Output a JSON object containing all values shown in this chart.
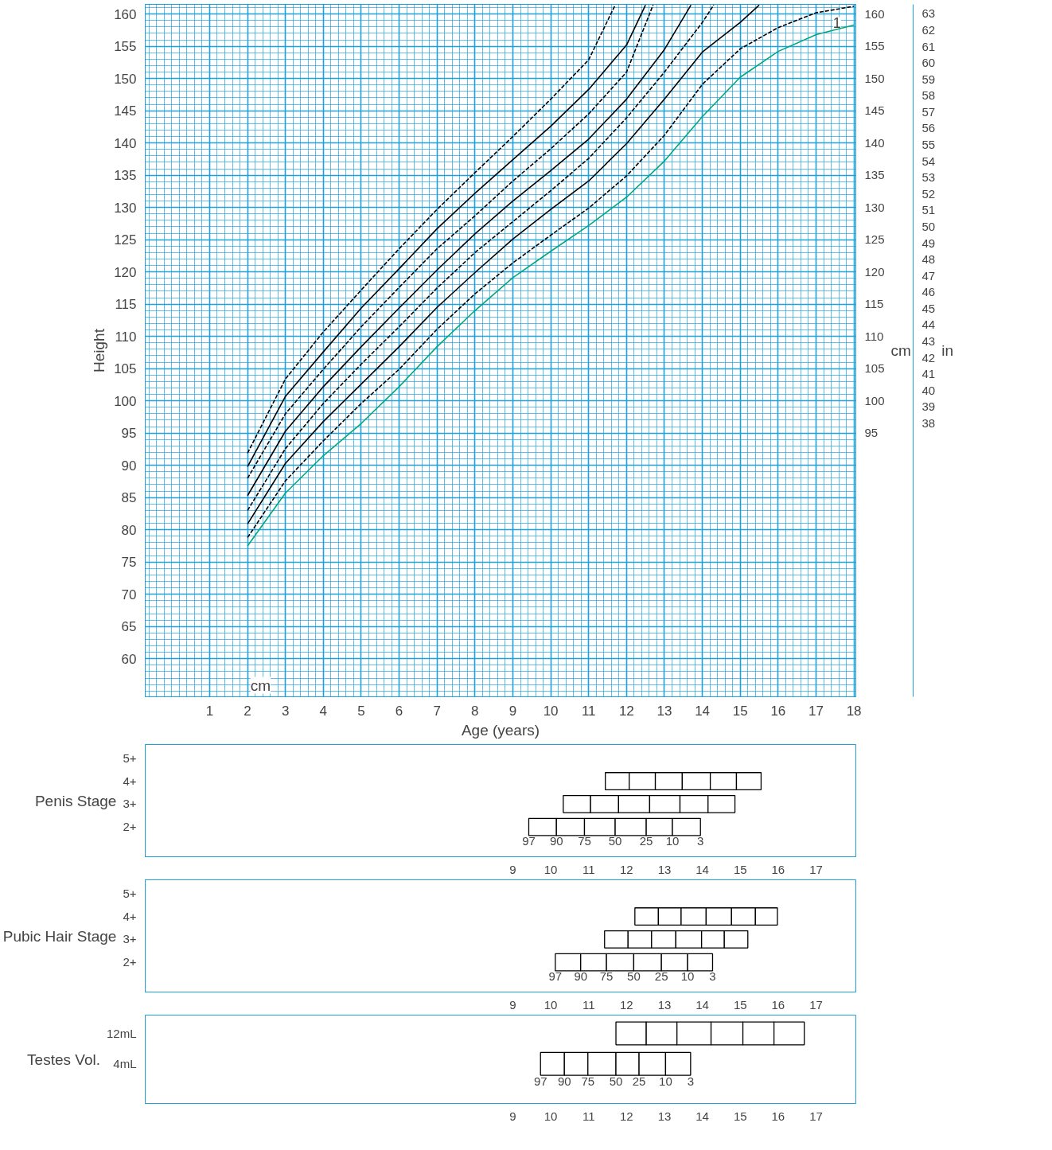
{
  "chart_data": [
    {
      "type": "line",
      "xlabel": "Age (years)",
      "ylabel": "Height",
      "y2label": "cm",
      "y3label": "in",
      "annotations": [
        "cm",
        "1"
      ],
      "xlim": [
        -0.7,
        18.05
      ],
      "xticks": [
        1,
        2,
        3,
        4,
        5,
        6,
        7,
        8,
        9,
        10,
        11,
        12,
        13,
        14,
        15,
        16,
        17,
        18
      ],
      "ylim": [
        54.1,
        161.5
      ],
      "yticks": [
        60,
        65,
        70,
        75,
        80,
        85,
        90,
        95,
        100,
        105,
        110,
        115,
        120,
        125,
        130,
        135,
        140,
        145,
        150,
        155,
        160
      ],
      "y2lim": [
        54.1,
        161.5
      ],
      "y2ticks": [
        95,
        100,
        105,
        110,
        115,
        120,
        125,
        130,
        135,
        140,
        145,
        150,
        155,
        160
      ],
      "y3lim": [
        21.3,
        63.58
      ],
      "y3ticks": [
        38,
        39,
        40,
        41,
        42,
        43,
        44,
        45,
        46,
        47,
        48,
        49,
        50,
        51,
        52,
        53,
        54,
        55,
        56,
        57,
        58,
        59,
        60,
        61,
        62,
        63
      ],
      "grid": true,
      "series": [
        {
          "color": "#000000",
          "line_style": "dashed",
          "x": [
            2,
            3,
            4,
            5,
            6,
            7,
            8,
            9,
            10,
            11,
            11.7
          ],
          "values": [
            91.9,
            103.4,
            110.7,
            117.2,
            123.6,
            129.7,
            135.4,
            141.0,
            146.8,
            152.9,
            161.4
          ]
        },
        {
          "color": "#000000",
          "line_style": "solid",
          "x": [
            2,
            3,
            4,
            5,
            6,
            7,
            8,
            9,
            10,
            11,
            12,
            12.5
          ],
          "values": [
            89.8,
            100.7,
            107.6,
            114.4,
            120.5,
            126.7,
            132.2,
            137.4,
            142.6,
            148.3,
            155.2,
            161.4
          ]
        },
        {
          "color": "#000000",
          "line_style": "dashed",
          "x": [
            2,
            3,
            4,
            5,
            6,
            7,
            8,
            9,
            10,
            11,
            12,
            12.7
          ],
          "values": [
            88.0,
            98.0,
            104.9,
            111.5,
            117.6,
            123.6,
            128.7,
            134.1,
            139.1,
            144.5,
            151.0,
            161.4
          ]
        },
        {
          "color": "#000000",
          "line_style": "solid",
          "x": [
            2,
            3,
            4,
            5,
            6,
            7,
            8,
            9,
            10,
            11,
            12,
            13,
            13.7
          ],
          "values": [
            85.3,
            95.3,
            102.2,
            108.4,
            114.4,
            120.3,
            125.9,
            131.0,
            135.7,
            140.6,
            146.8,
            154.5,
            161.4
          ]
        },
        {
          "color": "#000000",
          "line_style": "dashed",
          "x": [
            2,
            3,
            4,
            5,
            6,
            7,
            8,
            9,
            10,
            11,
            12,
            13,
            14,
            14.3
          ],
          "values": [
            83.0,
            92.6,
            99.6,
            105.7,
            111.5,
            117.5,
            123.0,
            127.8,
            132.6,
            137.6,
            143.9,
            151.0,
            158.7,
            161.4
          ]
        },
        {
          "color": "#000000",
          "line_style": "solid",
          "x": [
            2,
            3,
            4,
            5,
            6,
            7,
            8,
            9,
            10,
            11,
            12,
            13,
            14,
            15,
            15.5
          ],
          "values": [
            80.9,
            90.3,
            96.8,
            102.6,
            108.4,
            114.5,
            119.9,
            125.1,
            129.7,
            134.1,
            139.9,
            146.8,
            154.1,
            158.7,
            161.4
          ]
        },
        {
          "color": "#000000",
          "line_style": "dashed",
          "x": [
            2,
            3,
            4,
            5,
            6,
            7,
            8,
            9,
            10,
            11,
            12,
            13,
            14,
            15,
            16,
            17,
            18
          ],
          "values": [
            78.8,
            87.6,
            93.8,
            99.6,
            104.9,
            111.1,
            116.6,
            121.4,
            125.7,
            129.9,
            134.9,
            141.2,
            149.1,
            154.6,
            157.9,
            160.2,
            161.2
          ]
        },
        {
          "color": "#00a77e",
          "line_style": "solid",
          "x": [
            2,
            3,
            4,
            5,
            6,
            7,
            8,
            9,
            10,
            11,
            12,
            13,
            14,
            15,
            16,
            17,
            18
          ],
          "values": [
            77.5,
            85.7,
            91.5,
            96.5,
            102.2,
            108.4,
            114.0,
            119.1,
            123.2,
            127.2,
            131.6,
            137.2,
            144.1,
            150.2,
            154.2,
            156.8,
            158.3
          ]
        }
      ]
    },
    {
      "type": "bar",
      "orientation": "horizontal",
      "ylabel": "Penis Stage",
      "categories": [
        "5+",
        "4+",
        "3+",
        "2+"
      ],
      "xlim": [
        -0.7,
        18.05
      ],
      "xticks": [
        9,
        10,
        11,
        12,
        13,
        14,
        15,
        16,
        17
      ],
      "annotations": [
        "97",
        "90",
        "75",
        "50",
        "25",
        "10",
        "3"
      ],
      "series": [
        {
          "color": "#ffffff",
          "base": [
            null,
            11.44,
            10.33,
            9.42
          ],
          "values": [
            null,
            0.63,
            0.72,
            0.73
          ]
        },
        {
          "color": "#ffffff",
          "base": [
            null,
            12.07,
            11.05,
            10.15
          ],
          "values": [
            null,
            0.69,
            0.74,
            0.74
          ]
        },
        {
          "color": "#ffffff",
          "base": [
            null,
            12.76,
            11.79,
            10.89
          ],
          "values": [
            null,
            0.71,
            0.82,
            0.81
          ]
        },
        {
          "color": "#ffffff",
          "base": [
            null,
            13.47,
            12.61,
            11.7
          ],
          "values": [
            null,
            0.74,
            0.8,
            0.82
          ]
        },
        {
          "color": "#ffffff",
          "base": [
            null,
            14.21,
            13.41,
            12.52
          ],
          "values": [
            null,
            0.69,
            0.74,
            0.69
          ]
        },
        {
          "color": "#ffffff",
          "base": [
            null,
            14.9,
            14.15,
            13.21
          ],
          "values": [
            null,
            0.65,
            0.71,
            0.74
          ]
        }
      ]
    },
    {
      "type": "bar",
      "orientation": "horizontal",
      "ylabel": "Pubic Hair Stage",
      "categories": [
        "5+",
        "4+",
        "3+",
        "2+"
      ],
      "xlim": [
        -0.7,
        18.05
      ],
      "xticks": [
        9,
        10,
        11,
        12,
        13,
        14,
        15,
        16,
        17
      ],
      "annotations": [
        "97",
        "90",
        "75",
        "50",
        "25",
        "10",
        "3"
      ],
      "series": [
        {
          "color": "#ffffff",
          "base": [
            null,
            12.22,
            11.42,
            10.12
          ],
          "values": [
            null,
            0.62,
            0.62,
            0.67
          ]
        },
        {
          "color": "#ffffff",
          "base": [
            null,
            12.84,
            12.04,
            10.79
          ],
          "values": [
            null,
            0.6,
            0.62,
            0.68
          ]
        },
        {
          "color": "#ffffff",
          "base": [
            null,
            13.44,
            12.66,
            11.47
          ],
          "values": [
            null,
            0.66,
            0.64,
            0.72
          ]
        },
        {
          "color": "#ffffff",
          "base": [
            null,
            14.1,
            13.3,
            12.19
          ],
          "values": [
            null,
            0.67,
            0.68,
            0.73
          ]
        },
        {
          "color": "#ffffff",
          "base": [
            null,
            14.77,
            13.98,
            12.92
          ],
          "values": [
            null,
            0.63,
            0.6,
            0.69
          ]
        },
        {
          "color": "#ffffff",
          "base": [
            null,
            15.4,
            14.58,
            13.61
          ],
          "values": [
            null,
            0.58,
            0.62,
            0.66
          ]
        }
      ]
    },
    {
      "type": "bar",
      "orientation": "horizontal",
      "ylabel": "Testes Vol.",
      "categories": [
        "12mL",
        "4mL"
      ],
      "xlim": [
        -0.7,
        18.05
      ],
      "xticks": [
        9,
        10,
        11,
        12,
        13,
        14,
        15,
        16,
        17
      ],
      "annotations": [
        "97",
        "90",
        "75",
        "50",
        "25",
        "10",
        "3"
      ],
      "series": [
        {
          "color": "#ffffff",
          "base": [
            11.72,
            9.73
          ],
          "values": [
            0.8,
            0.63
          ]
        },
        {
          "color": "#ffffff",
          "base": [
            12.52,
            10.36
          ],
          "values": [
            0.81,
            0.62
          ]
        },
        {
          "color": "#ffffff",
          "base": [
            13.33,
            10.98
          ],
          "values": [
            0.9,
            0.74
          ]
        },
        {
          "color": "#ffffff",
          "base": [
            14.23,
            11.72
          ],
          "values": [
            0.84,
            0.61
          ]
        },
        {
          "color": "#ffffff",
          "base": [
            15.07,
            12.33
          ],
          "values": [
            0.82,
            0.7
          ]
        },
        {
          "color": "#ffffff",
          "base": [
            15.89,
            13.03
          ],
          "values": [
            0.8,
            0.66
          ]
        }
      ]
    }
  ]
}
